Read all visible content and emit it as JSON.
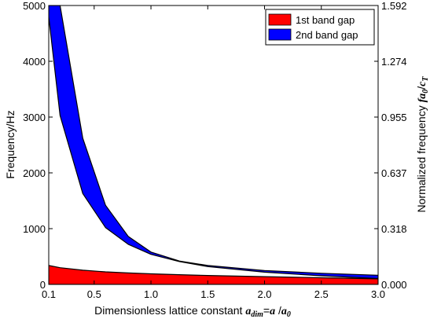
{
  "chart_data": {
    "type": "area",
    "xlabel_prefix": "Dimensionless lattice constant ",
    "xlabel_math": {
      "a1": "a",
      "sub1": "dim",
      "eq": "=",
      "a2": "a",
      "slash": " /",
      "a3": "a",
      "sub3": "0"
    },
    "ylabel": "Frequency/Hz",
    "y2label_prefix": "Normalized frequency ",
    "y2label_math": {
      "f": "fa",
      "sub1": "0",
      "slash": "/",
      "c": "c",
      "sub2": "T"
    },
    "xlim": [
      0.1,
      3.0
    ],
    "ylim": [
      0,
      5000
    ],
    "x_ticks": [
      "0.1",
      "0.5",
      "1.0",
      "1.5",
      "2.0",
      "2.5",
      "3.0"
    ],
    "x_tick_values": [
      0.1,
      0.5,
      1.0,
      1.5,
      2.0,
      2.5,
      3.0
    ],
    "y_ticks": [
      "0",
      "1000",
      "2000",
      "3000",
      "4000",
      "5000"
    ],
    "y_tick_values": [
      0,
      1000,
      2000,
      3000,
      4000,
      5000
    ],
    "y2_ticks": [
      "0.000",
      "0.318",
      "0.637",
      "0.955",
      "1.274",
      "1.592"
    ],
    "y2_tick_values": [
      0,
      1000,
      2000,
      3000,
      4000,
      5000
    ],
    "legend_position": "top-right",
    "colors": {
      "band1": "#ff0000",
      "band2": "#0000ff"
    },
    "series": [
      {
        "name": "1st band gap",
        "x": [
          0.1,
          0.2,
          0.4,
          0.6,
          0.8,
          1.0,
          1.25,
          1.5,
          2.0,
          2.5,
          3.0
        ],
        "lower": [
          0,
          0,
          0,
          0,
          0,
          0,
          0,
          0,
          0,
          0,
          0
        ],
        "upper": [
          340,
          300,
          255,
          225,
          205,
          190,
          175,
          160,
          140,
          120,
          100
        ]
      },
      {
        "name": "2nd band gap",
        "x": [
          0.1,
          0.2,
          0.4,
          0.6,
          0.8,
          1.0,
          1.25,
          1.5,
          2.0,
          2.5,
          3.0
        ],
        "lower": [
          4800,
          3030,
          1630,
          1020,
          720,
          540,
          410,
          320,
          220,
          155,
          105
        ],
        "upper": [
          5000,
          5000,
          2620,
          1420,
          860,
          580,
          420,
          340,
          250,
          200,
          165
        ]
      }
    ]
  }
}
